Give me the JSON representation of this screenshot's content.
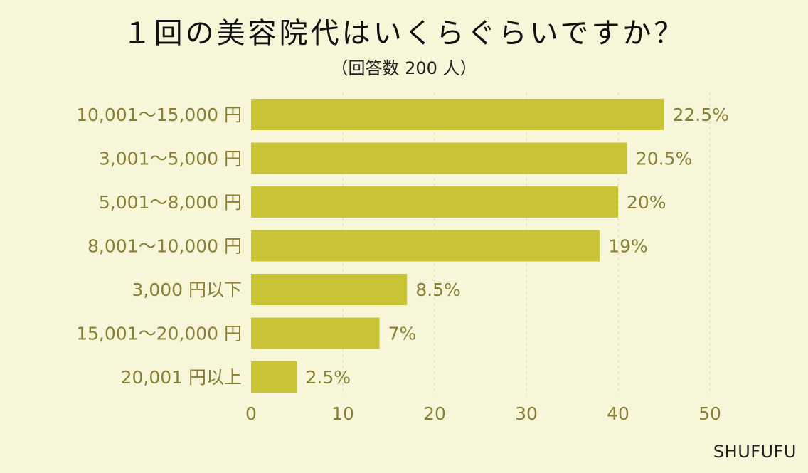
{
  "title": "１回の美容院代はいくらぐらいですか？",
  "subtitle": "（回答数 200 人）",
  "brand": "SHUFUFU",
  "colors": {
    "background": "#f7f6d8",
    "bar": "#c9c336",
    "label": "#8b7f36",
    "grid": "#d8d6b4"
  },
  "chart_data": {
    "type": "bar",
    "orientation": "horizontal",
    "title": "１回の美容院代はいくらぐらいですか？",
    "subtitle": "（回答数 200 人）",
    "categories": [
      "10,001～15,000 円",
      "3,001～5,000 円",
      "5,001～8,000 円",
      "8,001～10,000 円",
      "3,000 円以下",
      "15,001～20,000 円",
      "20,001 円以上"
    ],
    "values": [
      45,
      41,
      40,
      38,
      17,
      14,
      5
    ],
    "value_labels": [
      "22.5%",
      "20.5%",
      "20%",
      "19%",
      "8.5%",
      "7%",
      "2.5%"
    ],
    "xlim": [
      0,
      50
    ],
    "xticks": [
      "0",
      "10",
      "20",
      "30",
      "40",
      "50"
    ],
    "grid": "vertical dashed"
  }
}
